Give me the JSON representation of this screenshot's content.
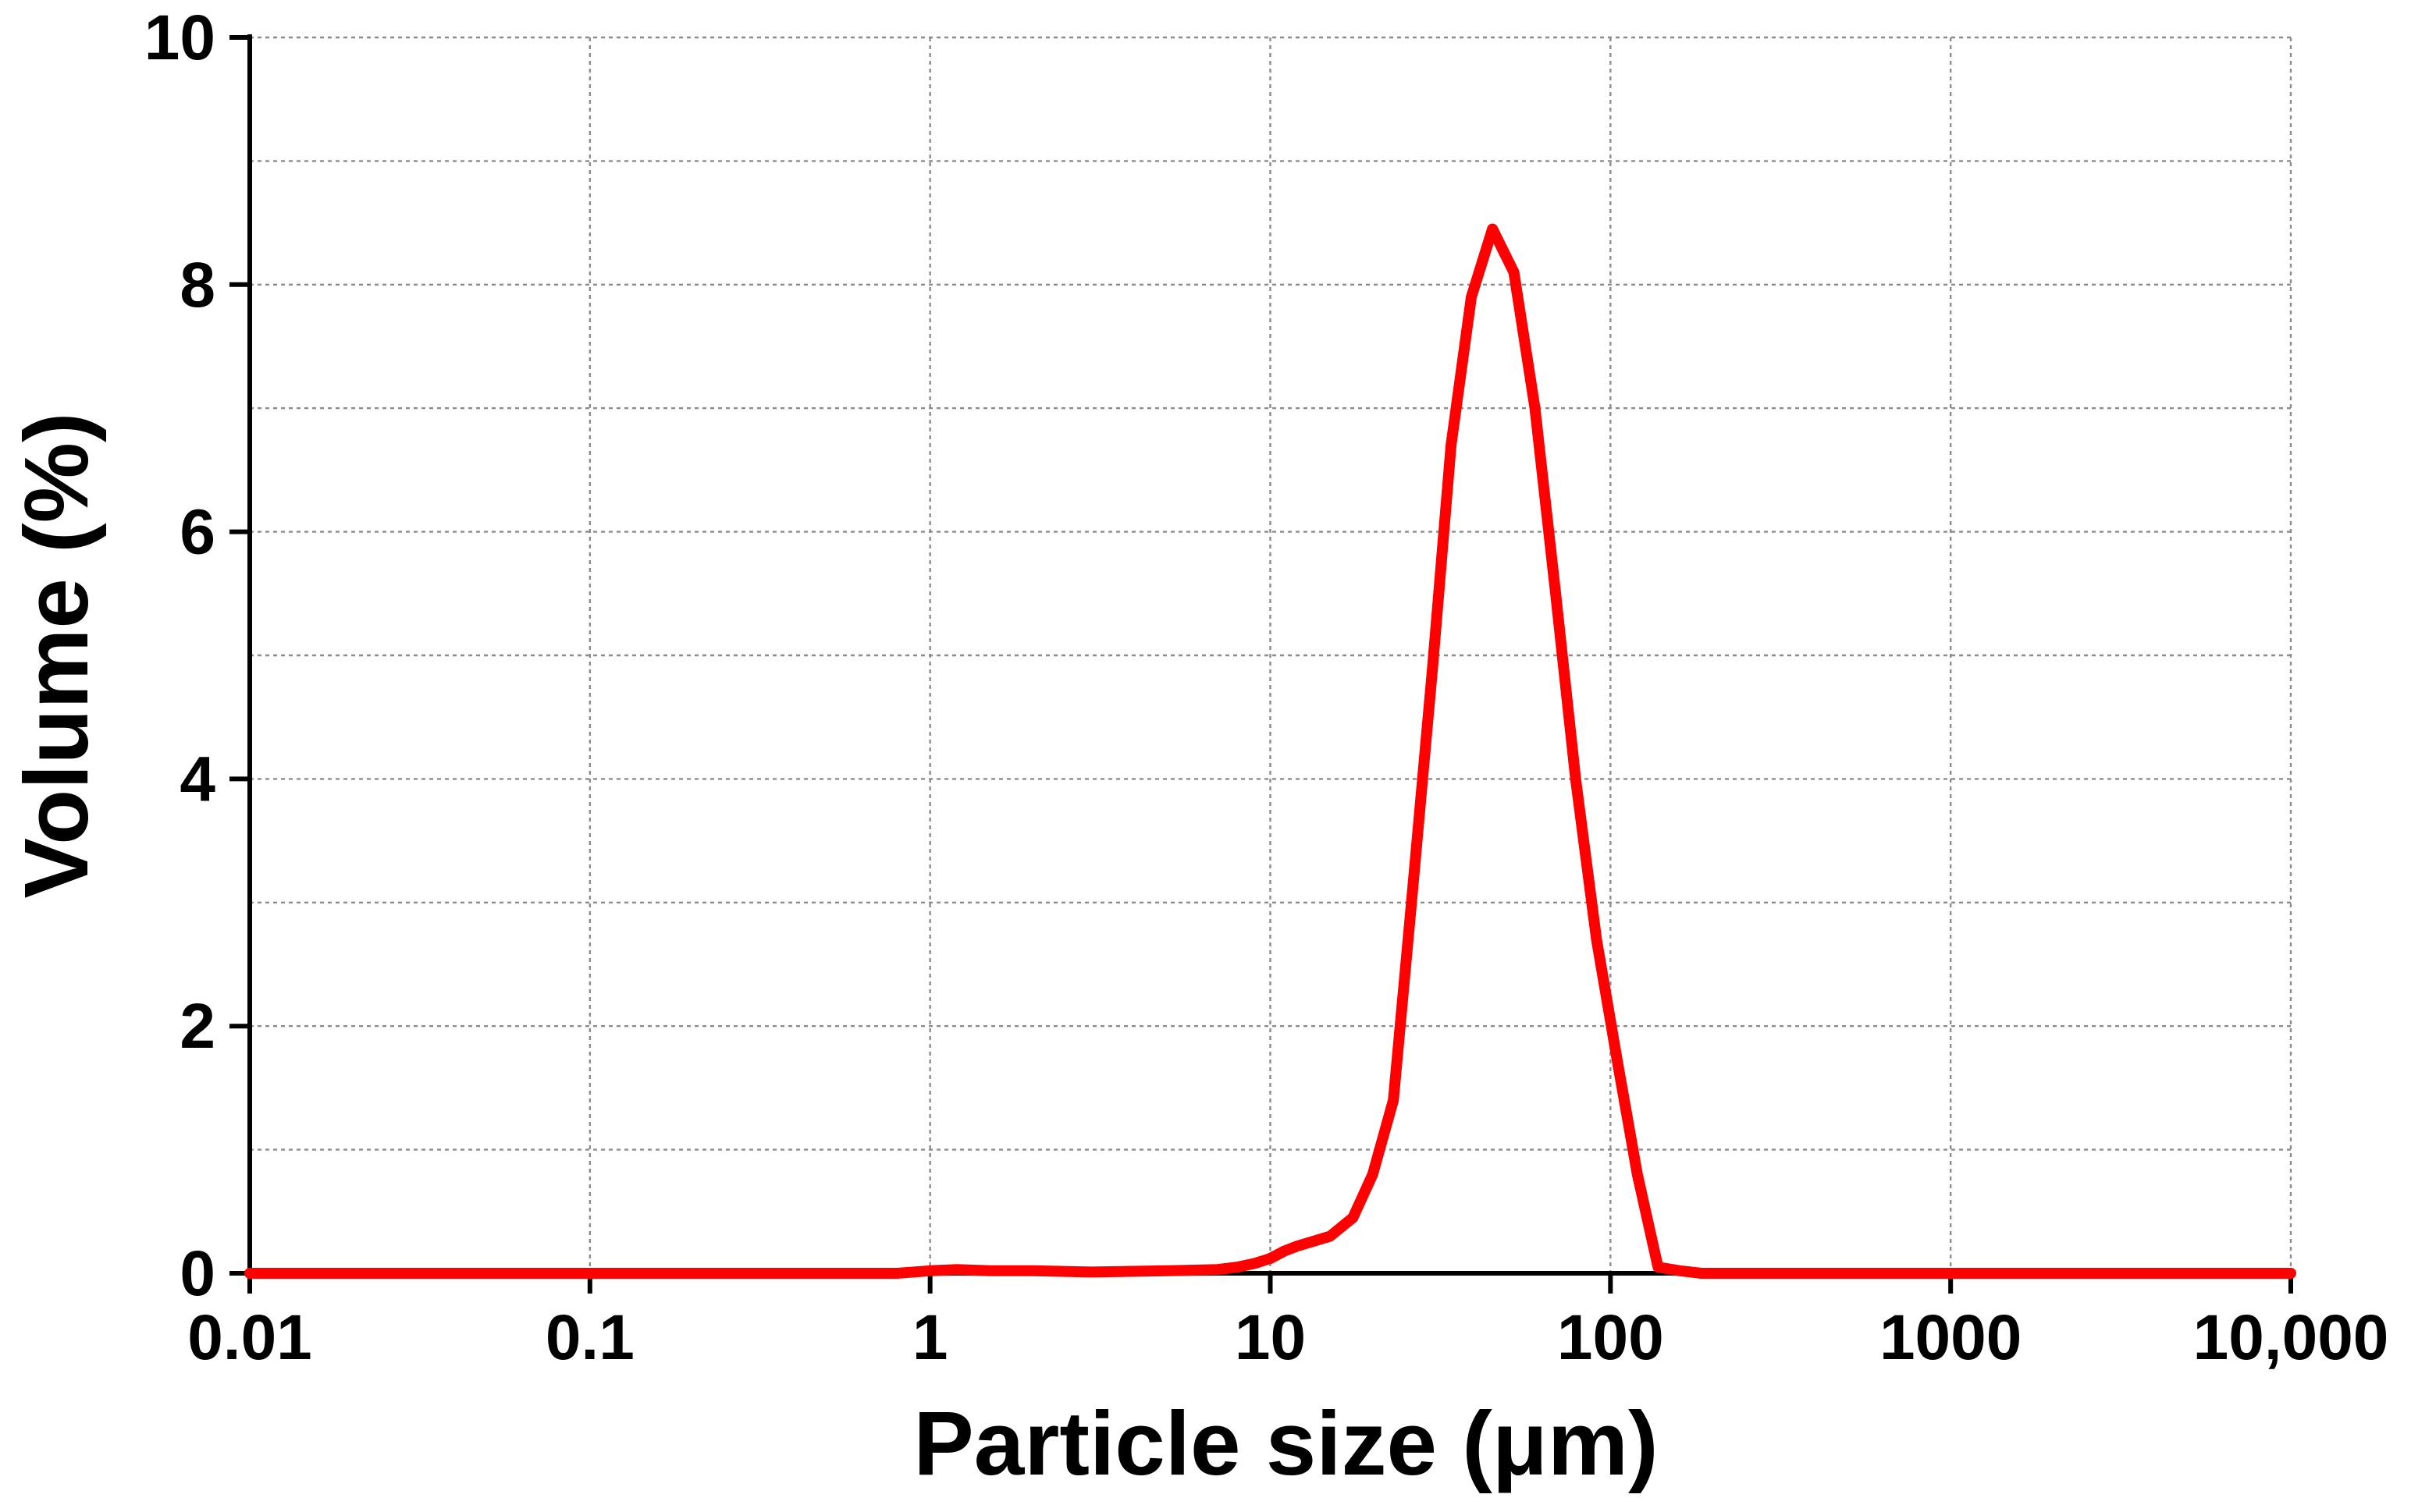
{
  "chart_data": {
    "type": "line",
    "title": "",
    "xlabel": "Particle size (μm)",
    "ylabel": "Volume (%)",
    "x_scale": "log",
    "xlim": [
      0.01,
      10000
    ],
    "ylim": [
      0,
      10
    ],
    "x_ticks": [
      {
        "value": 0.01,
        "label": "0.01"
      },
      {
        "value": 0.1,
        "label": "0.1"
      },
      {
        "value": 1,
        "label": "1"
      },
      {
        "value": 10,
        "label": "10"
      },
      {
        "value": 100,
        "label": "100"
      },
      {
        "value": 1000,
        "label": "1000"
      },
      {
        "value": 10000,
        "label": "10,000"
      }
    ],
    "y_ticks": [
      {
        "value": 0,
        "label": "0"
      },
      {
        "value": 2,
        "label": "2"
      },
      {
        "value": 4,
        "label": "4"
      },
      {
        "value": 6,
        "label": "6"
      },
      {
        "value": 8,
        "label": "8"
      },
      {
        "value": 10,
        "label": "10"
      }
    ],
    "grid": true,
    "grid_style": "dotted",
    "y_minor_grid_step": 1,
    "line_color": "#ff0000",
    "series": [
      {
        "x": [
          0.01,
          0.1,
          0.5,
          0.8,
          1.0,
          1.2,
          1.5,
          2.0,
          3.0,
          5.0,
          7.0,
          8.0,
          9.0,
          10.0,
          11.0,
          12.0,
          15.0,
          17.5,
          20.0,
          23.0,
          26.0,
          30.0,
          34.0,
          39.0,
          45.0,
          52.0,
          60.0,
          69.0,
          79.0,
          91.0,
          105.0,
          120.0,
          138.0,
          160.0,
          185.0,
          250.0,
          1000.0,
          10000.0
        ],
        "y": [
          0,
          0,
          0,
          0,
          0.02,
          0.03,
          0.02,
          0.02,
          0.01,
          0.02,
          0.03,
          0.05,
          0.08,
          0.12,
          0.18,
          0.22,
          0.3,
          0.45,
          0.8,
          1.4,
          3.0,
          4.9,
          6.7,
          7.9,
          8.45,
          8.1,
          7.0,
          5.5,
          4.0,
          2.7,
          1.7,
          0.8,
          0.05,
          0.02,
          0,
          0,
          0,
          0
        ]
      }
    ]
  }
}
